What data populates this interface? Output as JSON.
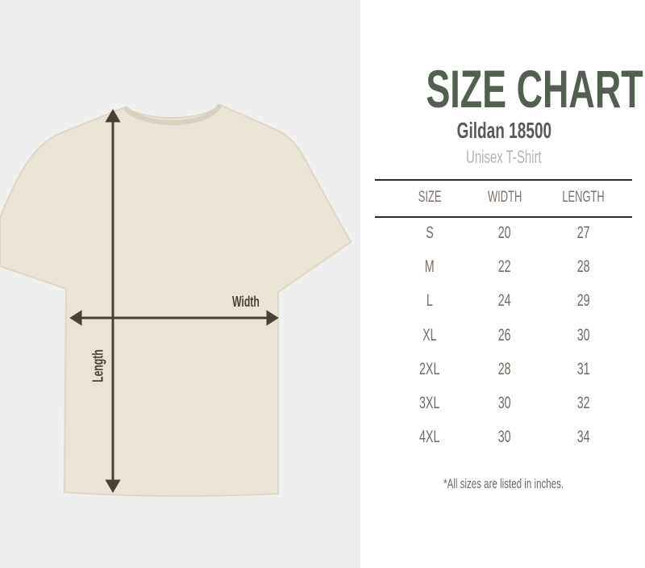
{
  "header": {
    "title": "SIZE CHART",
    "subtitle": "Gildan 18500",
    "tagline": "Unisex T-Shirt"
  },
  "diagram": {
    "width_label": "Width",
    "length_label": "Length",
    "shirt_color": "#e9e4d5",
    "arrow_color": "#4a4038"
  },
  "table": {
    "headers": [
      "SIZE",
      "WIDTH",
      "LENGTH"
    ],
    "rows": [
      [
        "S",
        "20",
        "27"
      ],
      [
        "M",
        "22",
        "28"
      ],
      [
        "L",
        "24",
        "29"
      ],
      [
        "XL",
        "26",
        "30"
      ],
      [
        "2XL",
        "28",
        "31"
      ],
      [
        "3XL",
        "30",
        "32"
      ],
      [
        "4XL",
        "30",
        "34"
      ]
    ]
  },
  "footnote": "*All sizes are listed in inches.",
  "colors": {
    "title": "#535f51",
    "table_text": "#746a62"
  }
}
